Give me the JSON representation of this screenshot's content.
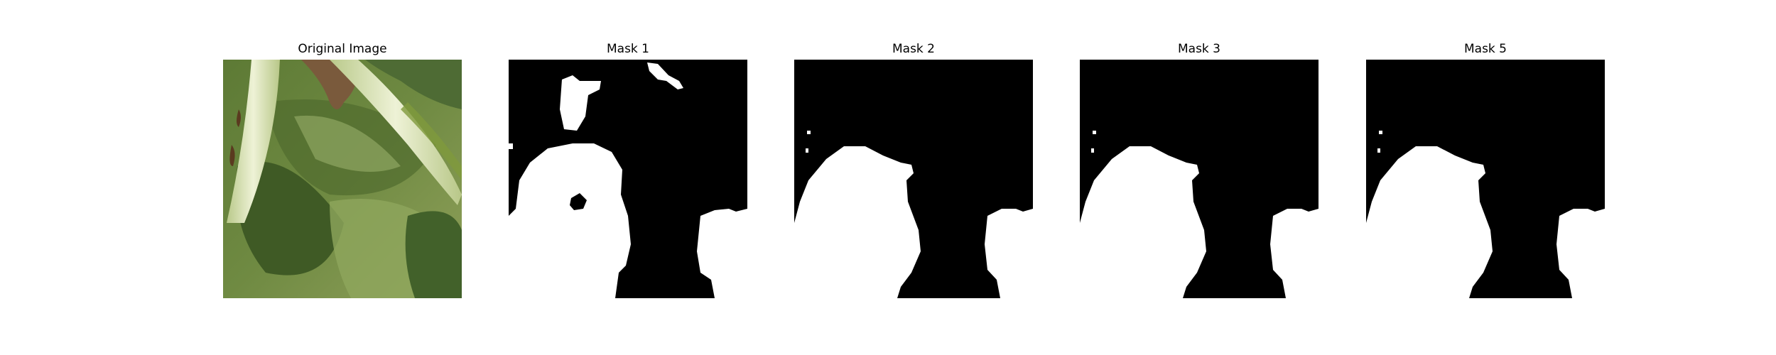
{
  "panels": [
    {
      "title": "Original Image"
    },
    {
      "title": "Mask 1"
    },
    {
      "title": "Mask 2"
    },
    {
      "title": "Mask 3"
    },
    {
      "title": "Mask 5"
    }
  ],
  "colors": {
    "mask_background": "#000000",
    "mask_foreground": "#ffffff",
    "leaf_dark": "#4f6b2c",
    "leaf_mid": "#6f8a3e",
    "leaf_light": "#a9b97a",
    "stem": "#dfe6c2"
  }
}
